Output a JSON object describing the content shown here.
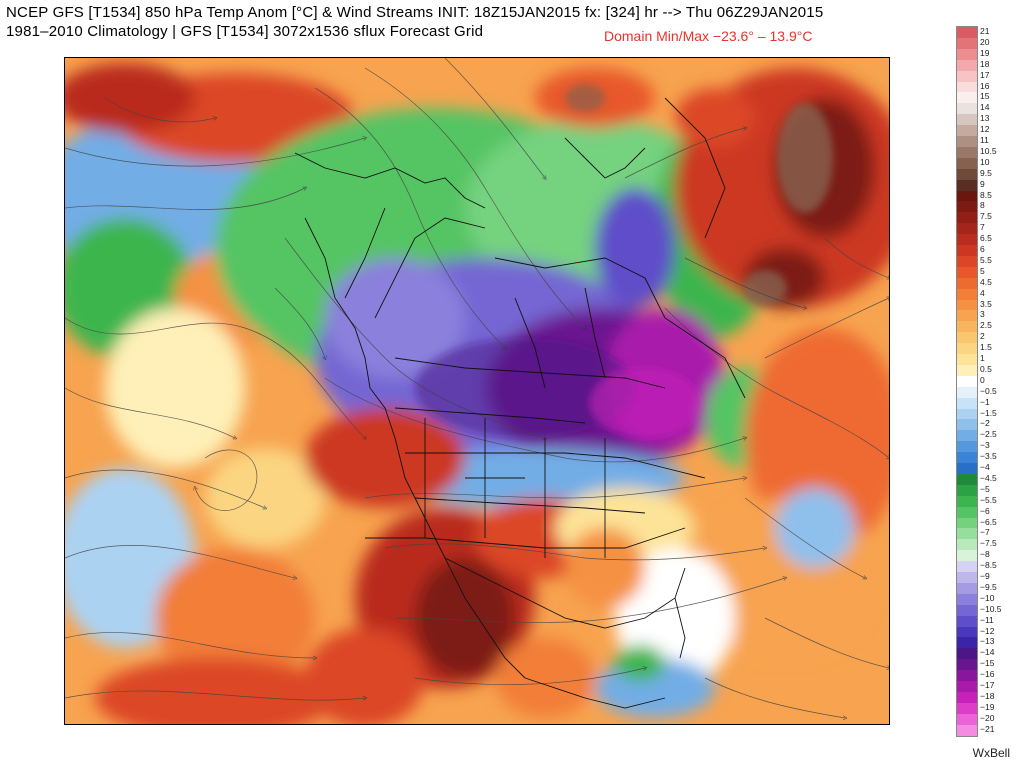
{
  "header": {
    "line1": "NCEP GFS [T1534] 850 hPa Temp Anom [°C] & Wind Streams INIT: 18Z15JAN2015 fx: [324] hr --> Thu 06Z29JAN2015",
    "line2": "1981–2010 Climatology | GFS [T1534] 3072x1536 sflux Forecast Grid",
    "domain_minmax": "Domain Min/Max −23.6° –  13.9°C"
  },
  "brand": "WxBell",
  "colors": {
    "warm_max": "#d8605f",
    "deep_red": "#7a1a14",
    "orange": "#f08a3c",
    "neutral": "#ffffff",
    "light_blue": "#9cc7ee",
    "green": "#35b84a",
    "purple": "#6a46c8",
    "magenta": "#b51fbf"
  },
  "colorbar": [
    {
      "label": "21",
      "color": "#d95c62"
    },
    {
      "label": "20",
      "color": "#e47377"
    },
    {
      "label": "19",
      "color": "#ed8d90"
    },
    {
      "label": "18",
      "color": "#f3a9ab"
    },
    {
      "label": "17",
      "color": "#f7c3c4"
    },
    {
      "label": "16",
      "color": "#fadcdc"
    },
    {
      "label": "15",
      "color": "#fbeeee"
    },
    {
      "label": "14",
      "color": "#eae2de"
    },
    {
      "label": "13",
      "color": "#d6c6bf"
    },
    {
      "label": "12",
      "color": "#c3ab9f"
    },
    {
      "label": "11",
      "color": "#ae9082"
    },
    {
      "label": "10.5",
      "color": "#9a7868"
    },
    {
      "label": "10",
      "color": "#876150"
    },
    {
      "label": "9.5",
      "color": "#6f4a3b"
    },
    {
      "label": "9",
      "color": "#5a2f23"
    },
    {
      "label": "8.5",
      "color": "#6a1710"
    },
    {
      "label": "8",
      "color": "#7d1b13"
    },
    {
      "label": "7.5",
      "color": "#911f16"
    },
    {
      "label": "7",
      "color": "#a5251a"
    },
    {
      "label": "6.5",
      "color": "#b92c1e"
    },
    {
      "label": "6",
      "color": "#cc3722"
    },
    {
      "label": "5.5",
      "color": "#dc4626"
    },
    {
      "label": "5",
      "color": "#e8582a"
    },
    {
      "label": "4.5",
      "color": "#ee6b30"
    },
    {
      "label": "4",
      "color": "#f27e38"
    },
    {
      "label": "3.5",
      "color": "#f59143"
    },
    {
      "label": "3",
      "color": "#f7a34f"
    },
    {
      "label": "2.5",
      "color": "#f9b55e"
    },
    {
      "label": "2",
      "color": "#fac66f"
    },
    {
      "label": "1.5",
      "color": "#fbd582"
    },
    {
      "label": "1",
      "color": "#fde398"
    },
    {
      "label": "0.5",
      "color": "#fef0b8"
    },
    {
      "label": "0",
      "color": "#ffffff"
    },
    {
      "label": "−0.5",
      "color": "#e4f1fb"
    },
    {
      "label": "−1",
      "color": "#c8e2f7"
    },
    {
      "label": "−1.5",
      "color": "#acd2f2"
    },
    {
      "label": "−2",
      "color": "#8fc0ec"
    },
    {
      "label": "−2.5",
      "color": "#72ade6"
    },
    {
      "label": "−3",
      "color": "#5598de"
    },
    {
      "label": "−3.5",
      "color": "#3a83d5"
    },
    {
      "label": "−4",
      "color": "#2a6fc7"
    },
    {
      "label": "−4.5",
      "color": "#1f8a3a"
    },
    {
      "label": "−5",
      "color": "#2ba243"
    },
    {
      "label": "−5.5",
      "color": "#3db54e"
    },
    {
      "label": "−6",
      "color": "#55c464"
    },
    {
      "label": "−6.5",
      "color": "#74d27f"
    },
    {
      "label": "−7",
      "color": "#96de9c"
    },
    {
      "label": "−7.5",
      "color": "#b8e9bb"
    },
    {
      "label": "−8",
      "color": "#d9f3da"
    },
    {
      "label": "−8.5",
      "color": "#d6d3f2"
    },
    {
      "label": "−9",
      "color": "#bdb7ec"
    },
    {
      "label": "−9.5",
      "color": "#a49be4"
    },
    {
      "label": "−10",
      "color": "#8b80dc"
    },
    {
      "label": "−10.5",
      "color": "#7466d3"
    },
    {
      "label": "−11",
      "color": "#5e4ec9"
    },
    {
      "label": "−12",
      "color": "#4a38bc"
    },
    {
      "label": "−13",
      "color": "#3a25a8"
    },
    {
      "label": "−14",
      "color": "#4b1786"
    },
    {
      "label": "−15",
      "color": "#6a1590"
    },
    {
      "label": "−16",
      "color": "#8a169d"
    },
    {
      "label": "−17",
      "color": "#a91aab"
    },
    {
      "label": "−18",
      "color": "#c622b9"
    },
    {
      "label": "−19",
      "color": "#dd3dc9"
    },
    {
      "label": "−20",
      "color": "#ec63d7"
    },
    {
      "label": "−21",
      "color": "#f58ce4"
    }
  ]
}
